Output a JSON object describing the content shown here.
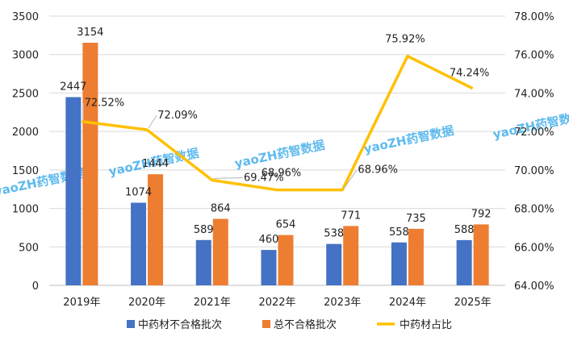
{
  "chart_data": {
    "type": "bar",
    "categories": [
      "2019年",
      "2020年",
      "2021年",
      "2022年",
      "2023年",
      "2024年",
      "2025年"
    ],
    "series": [
      {
        "name": "中药材不合格批次",
        "type": "bar",
        "axis": "left",
        "color": "#4472C4",
        "values": [
          2447,
          1074,
          589,
          460,
          538,
          558,
          588
        ],
        "labels": [
          "2447",
          "1074",
          "589",
          "460",
          "538",
          "558",
          "588"
        ]
      },
      {
        "name": "总不合格批次",
        "type": "bar",
        "axis": "left",
        "color": "#ED7D31",
        "values": [
          3154,
          1444,
          864,
          654,
          771,
          735,
          792
        ],
        "labels": [
          "3154",
          "1444",
          "864",
          "654",
          "771",
          "735",
          "792"
        ]
      },
      {
        "name": "中药材占比",
        "type": "line",
        "axis": "right",
        "color": "#FFC000",
        "values": [
          72.52,
          72.09,
          69.47,
          68.96,
          68.96,
          75.92,
          74.24
        ],
        "labels": [
          "72.52%",
          "72.09%",
          "69.47%",
          "68.96%",
          "68.96%",
          "75.92%",
          "74.24%"
        ]
      }
    ],
    "y_left": {
      "min": 0,
      "max": 3500,
      "step": 500,
      "ticks": [
        "0",
        "500",
        "1000",
        "1500",
        "2000",
        "2500",
        "3000",
        "3500"
      ]
    },
    "y_right": {
      "min": 64,
      "max": 78,
      "step": 2,
      "ticks": [
        "64.00%",
        "66.00%",
        "68.00%",
        "70.00%",
        "72.00%",
        "74.00%",
        "76.00%",
        "78.00%"
      ]
    },
    "grid": true,
    "legend_position": "bottom",
    "watermark": "yaoZH药智数据"
  }
}
